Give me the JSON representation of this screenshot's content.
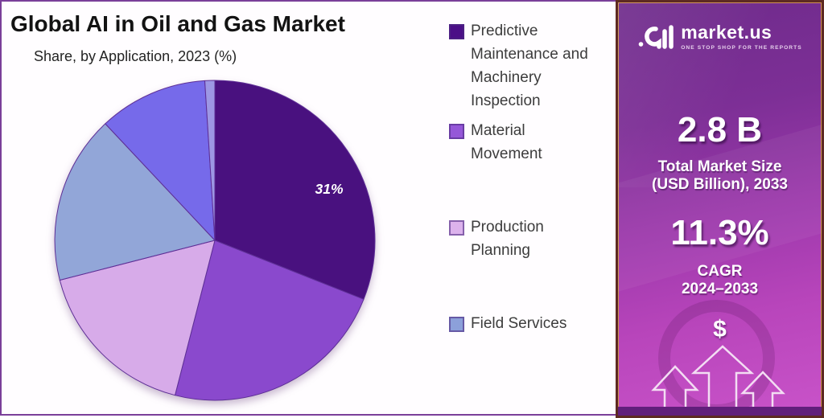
{
  "header": {
    "title": "Global AI in Oil and Gas Market",
    "subtitle": "Share, by Application, 2023 (%)"
  },
  "chart_data": {
    "type": "pie",
    "title": "Global AI in Oil and Gas Market",
    "subtitle": "Share, by Application, 2023 (%)",
    "unit": "%",
    "start_angle_deg": 0,
    "direction": "clockwise",
    "legend_position": "right",
    "slices": [
      {
        "name": "Predictive Maintenance and Machinery Inspection",
        "value": 31,
        "color": "#49117f",
        "data_label": "31%"
      },
      {
        "name": "Material Movement",
        "value": 23,
        "color": "#8a49cd",
        "data_label": ""
      },
      {
        "name": "Production Planning",
        "value": 17,
        "color": "#d7abe9",
        "data_label": ""
      },
      {
        "name": "Field Services",
        "value": 17,
        "color": "#92a6d8",
        "data_label": ""
      },
      {
        "name": "",
        "value": 11,
        "color": "#766aea",
        "data_label": ""
      },
      {
        "name": "",
        "value": 1,
        "color": "#9d97e4",
        "data_label": ""
      }
    ],
    "slice_stroke_color": "#5e2f96"
  },
  "legend": {
    "items": [
      {
        "label": "Predictive Maintenance and Machinery Inspection",
        "color": "#4b0f87"
      },
      {
        "label": "Material Movement",
        "color": "#9557d8"
      },
      {
        "label": "Production Planning",
        "color": "#dcb2ec"
      },
      {
        "label": "Field Services",
        "color": "#8ca0da"
      }
    ]
  },
  "sidebar": {
    "brand": {
      "name": "market.us",
      "tagline": "ONE STOP SHOP FOR THE REPORTS",
      "logo_icon": "market-us-logo"
    },
    "stats": [
      {
        "value": "2.8 B",
        "label_lines": [
          "Total Market Size",
          "(USD Billion), 2033"
        ]
      },
      {
        "value": "11.3%",
        "label_lines": [
          "CAGR",
          "2024–2033"
        ]
      }
    ],
    "dollar_symbol": "$",
    "colors": {
      "gradient_top": "#6e2b8b",
      "gradient_bottom": "#c953c9",
      "bottom_strip": "#611f7b"
    }
  }
}
